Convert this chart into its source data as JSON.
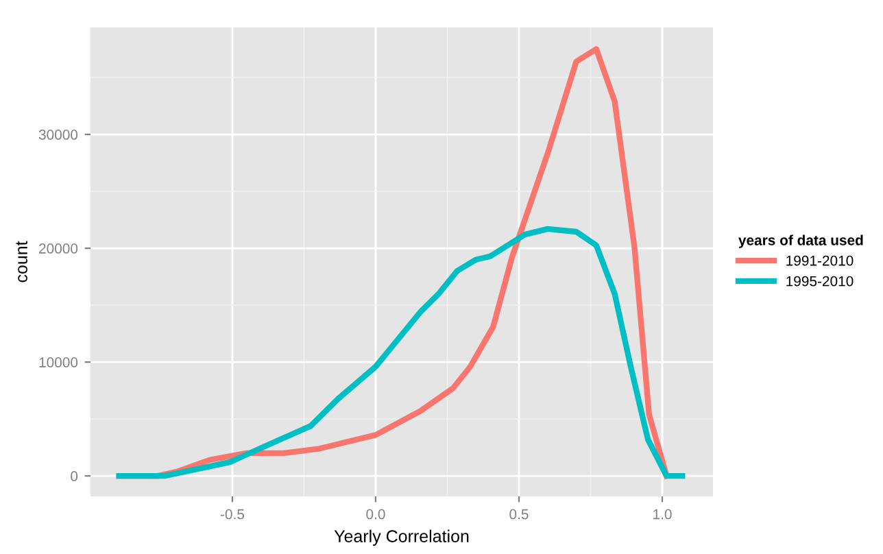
{
  "chart_data": {
    "type": "line",
    "xlabel": "Yearly Correlation",
    "ylabel": "count",
    "legend_title": "years of data used",
    "series": [
      {
        "name": "1991-2010",
        "color": "#f8766d",
        "x": [
          -0.895,
          -0.76,
          -0.69,
          -0.58,
          -0.45,
          -0.32,
          -0.196,
          0.0,
          0.156,
          0.27,
          0.33,
          0.41,
          0.475,
          0.603,
          0.7,
          0.77,
          0.834,
          0.903,
          0.954,
          1.015
        ],
        "values": [
          0,
          0,
          400,
          1400,
          2000,
          2000,
          2400,
          3600,
          5700,
          7700,
          9600,
          13100,
          19150,
          28550,
          36400,
          37500,
          32900,
          20100,
          5400,
          0
        ]
      },
      {
        "name": "1995-2010",
        "color": "#00bfc4",
        "x": [
          -0.895,
          -0.737,
          -0.51,
          -0.387,
          -0.226,
          -0.13,
          0.0,
          0.156,
          0.22,
          0.284,
          0.35,
          0.4,
          0.52,
          0.6,
          0.7,
          0.77,
          0.834,
          0.89,
          0.95,
          1.015,
          1.07
        ],
        "values": [
          0,
          0,
          1200,
          2600,
          4400,
          6800,
          9600,
          14400,
          16000,
          18000,
          19000,
          19300,
          21200,
          21700,
          21450,
          20250,
          16000,
          9600,
          3200,
          0,
          0
        ]
      }
    ],
    "xlim": [
      -0.995,
      1.177
    ],
    "ylim": [
      -1800,
      39400
    ],
    "xticks": [
      {
        "value": -0.5,
        "label": "-0.5"
      },
      {
        "value": 0,
        "label": "0.0"
      },
      {
        "value": 0.5,
        "label": "0.5"
      },
      {
        "value": 1.0,
        "label": "1.0"
      }
    ],
    "yticks": [
      0,
      10000,
      20000,
      30000
    ],
    "grid": true,
    "legend": "right",
    "line_style": "solid",
    "marker": "none"
  }
}
